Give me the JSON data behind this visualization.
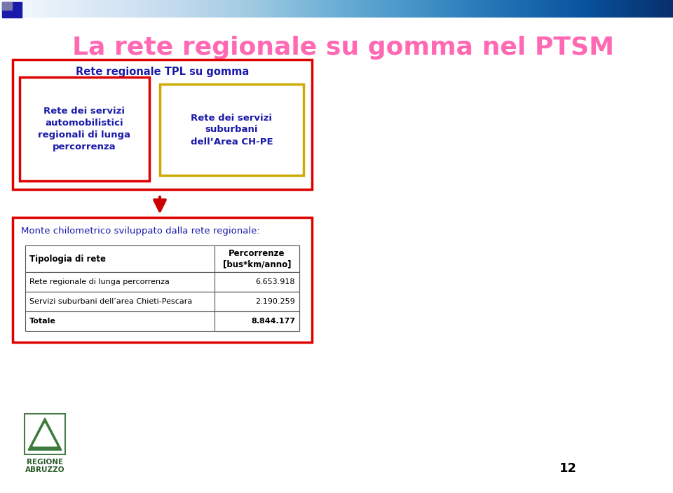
{
  "title": "La rete regionale su gomma nel PTSM",
  "title_color": "#FF69B4",
  "title_fontsize": 26,
  "bg_color": "#FFFFFF",
  "box1_text": "Rete regionale TPL su gomma",
  "box1_text_color": "#1a1aaa",
  "box2_text": "Rete dei servizi\nautomobilistici\nregionali di lunga\npercorrenza",
  "box2_text_color": "#1a1aaa",
  "box2_border": "#DD0000",
  "box3_text": "Rete dei servizi\nsuburbani\ndell’Area CH-PE",
  "box3_text_color": "#1a1aaa",
  "box3_border": "#CCAA00",
  "outer_box_border": "#DD0000",
  "bottom_box_border": "#DD0000",
  "subtitle_text": "Monte chilometrico sviluppato dalla rete regionale:",
  "subtitle_color": "#1a1aaa",
  "table_header_col1": "Tipologia di rete",
  "table_header_col2": "Percorrenze\n[bus*km/anno]",
  "table_rows": [
    [
      "Rete regionale di lunga percorrenza",
      "6.653.918"
    ],
    [
      "Servizi suburbani dell’area Chieti-Pescara",
      "2.190.259"
    ],
    [
      "Totale",
      "8.844.177"
    ]
  ],
  "arrow_color": "#CC0000",
  "regione_text_line1": "REGIONE",
  "regione_text_line2": "ABRUZZO",
  "regione_text_color": "#2a5a2a",
  "page_number": "12"
}
